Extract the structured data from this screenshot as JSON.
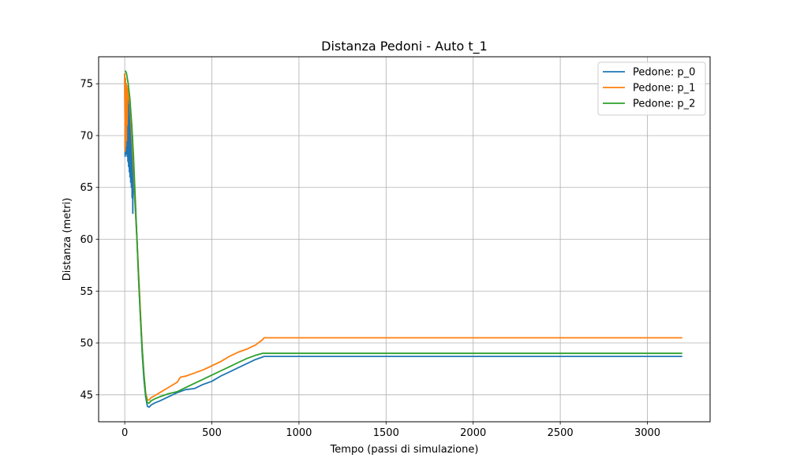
{
  "chart_data": {
    "type": "line",
    "title": "Distanza Pedoni - Auto t_1",
    "xlabel": "Tempo (passi di simulazione)",
    "ylabel": "Distanza (metri)",
    "xlim": [
      -150,
      3360
    ],
    "ylim": [
      42.4,
      77.6
    ],
    "xticks": [
      0,
      500,
      1000,
      1500,
      2000,
      2500,
      3000
    ],
    "yticks": [
      45,
      50,
      55,
      60,
      65,
      70,
      75
    ],
    "grid": true,
    "legend_position": "top-right",
    "series": [
      {
        "name": "Pedone: p_0",
        "color": "#1f77b4",
        "x": [
          0,
          2,
          4,
          6,
          8,
          10,
          12,
          14,
          16,
          18,
          20,
          22,
          24,
          26,
          28,
          30,
          32,
          34,
          36,
          38,
          40,
          42,
          44,
          46,
          48,
          50,
          60,
          70,
          80,
          90,
          100,
          110,
          120,
          130,
          140,
          150,
          170,
          200,
          250,
          300,
          350,
          400,
          450,
          500,
          550,
          600,
          650,
          700,
          750,
          800,
          850,
          3200
        ],
        "y": [
          76.0,
          68.0,
          75.5,
          68.2,
          75.0,
          68.5,
          74.8,
          68.0,
          74.0,
          67.5,
          73.5,
          67.0,
          73.0,
          66.5,
          72.5,
          66.0,
          72.0,
          65.5,
          71.5,
          65.0,
          71.0,
          64.0,
          70.0,
          62.5,
          68.0,
          66.0,
          63.0,
          60.0,
          56.0,
          52.5,
          49.0,
          46.5,
          44.8,
          43.9,
          43.8,
          44.0,
          44.2,
          44.4,
          44.8,
          45.2,
          45.5,
          45.6,
          46.0,
          46.3,
          46.8,
          47.2,
          47.6,
          48.0,
          48.4,
          48.7,
          48.7,
          48.7
        ]
      },
      {
        "name": "Pedone: p_1",
        "color": "#ff7f0e",
        "x": [
          0,
          2,
          4,
          6,
          8,
          10,
          12,
          14,
          16,
          20,
          30,
          40,
          50,
          60,
          70,
          80,
          90,
          100,
          110,
          120,
          130,
          140,
          150,
          170,
          200,
          250,
          300,
          320,
          350,
          400,
          450,
          500,
          550,
          600,
          650,
          700,
          750,
          790,
          800,
          850,
          3200
        ],
        "y": [
          76.0,
          68.5,
          75.5,
          69.0,
          75.0,
          69.5,
          74.8,
          71.0,
          74.5,
          74.0,
          73.0,
          70.0,
          67.0,
          63.5,
          60.0,
          56.5,
          53.0,
          49.5,
          47.0,
          45.2,
          44.5,
          44.5,
          44.7,
          44.9,
          45.2,
          45.7,
          46.2,
          46.7,
          46.8,
          47.1,
          47.4,
          47.8,
          48.2,
          48.7,
          49.1,
          49.4,
          49.8,
          50.3,
          50.5,
          50.5,
          50.5
        ]
      },
      {
        "name": "Pedone: p_2",
        "color": "#2ca02c",
        "x": [
          0,
          5,
          10,
          15,
          20,
          30,
          40,
          50,
          60,
          70,
          80,
          90,
          100,
          110,
          120,
          130,
          140,
          150,
          170,
          200,
          250,
          300,
          350,
          400,
          450,
          500,
          550,
          600,
          650,
          700,
          750,
          790,
          800,
          850,
          3200
        ],
        "y": [
          76.2,
          76.2,
          76.0,
          75.5,
          75.0,
          73.5,
          71.0,
          68.0,
          64.0,
          60.0,
          56.0,
          52.5,
          49.5,
          47.0,
          45.0,
          44.2,
          44.2,
          44.4,
          44.6,
          44.8,
          45.1,
          45.3,
          45.7,
          46.1,
          46.5,
          46.9,
          47.3,
          47.7,
          48.1,
          48.5,
          48.8,
          49.0,
          49.0,
          49.0,
          49.0
        ]
      }
    ]
  }
}
